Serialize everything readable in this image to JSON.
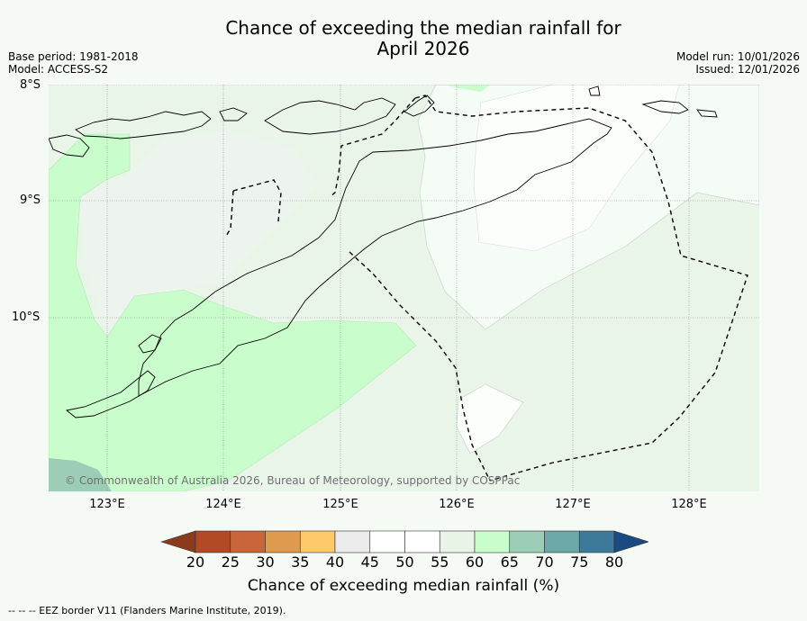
{
  "title": "Chance of exceeding the median rainfall for\nApril 2026",
  "base_period": "Base period: 1981-2018",
  "model": "Model: ACCESS-S2",
  "model_run": "Model run: 10/01/2026",
  "issued": "Issued: 12/01/2026",
  "latitudes": [
    "8°S",
    "9°S",
    "10°S"
  ],
  "longitudes": [
    "123°E",
    "124°E",
    "125°E",
    "126°E",
    "127°E",
    "128°E"
  ],
  "copyright": "© Commonwealth of Australia 2026, Bureau of Meteorology, supported by COSPPac",
  "colorbar": {
    "label": "Chance of exceeding median rainfall (%)",
    "ticks": [
      "20",
      "25",
      "30",
      "35",
      "40",
      "45",
      "50",
      "55",
      "60",
      "65",
      "70",
      "75",
      "80"
    ],
    "colors": [
      "#8b3a1e",
      "#b24a26",
      "#c8663a",
      "#e09a4e",
      "#fdc96a",
      "#ebebeb",
      "#ffffff",
      "#ffffff",
      "#e8f5e6",
      "#c9fdcc",
      "#9ccdb6",
      "#6ca8a8",
      "#3d7a9a",
      "#1a4a80"
    ]
  },
  "footnote": "--  --  -- EEZ border V11 (Flanders Marine Institute, 2019)."
}
